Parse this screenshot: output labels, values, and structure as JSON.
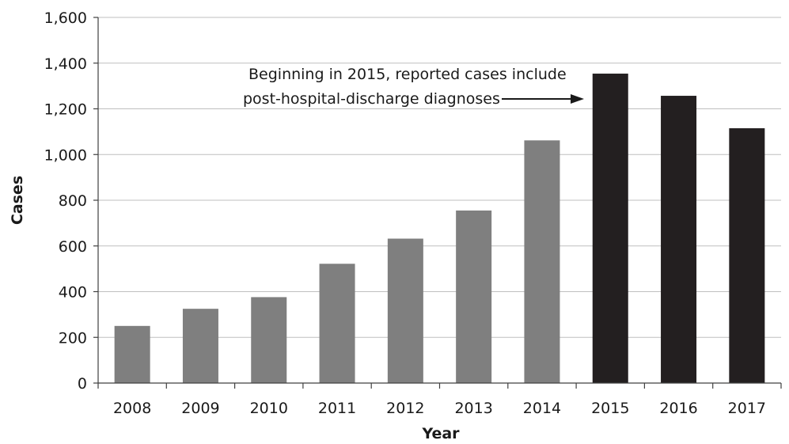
{
  "chart_data": {
    "type": "bar",
    "categories": [
      "2008",
      "2009",
      "2010",
      "2011",
      "2012",
      "2013",
      "2014",
      "2015",
      "2016",
      "2017"
    ],
    "values": [
      250,
      325,
      376,
      522,
      632,
      755,
      1062,
      1354,
      1257,
      1115
    ],
    "bar_colors": [
      "#7f7f7f",
      "#7f7f7f",
      "#7f7f7f",
      "#7f7f7f",
      "#7f7f7f",
      "#7f7f7f",
      "#7f7f7f",
      "#231f20",
      "#231f20",
      "#231f20"
    ],
    "title": "",
    "xlabel": "Year",
    "ylabel": "Cases",
    "ylim": [
      0,
      1600
    ],
    "yticks": [
      0,
      200,
      400,
      600,
      800,
      1000,
      1200,
      1400,
      1600
    ],
    "ytick_labels": [
      "0",
      "200",
      "400",
      "600",
      "800",
      "1,000",
      "1,200",
      "1,400",
      "1,600"
    ],
    "grid": true,
    "legend": "none",
    "annotation": {
      "lines": [
        "Beginning in 2015, reported cases include",
        "post-hospital-discharge diagnoses"
      ],
      "points_to": "2015"
    }
  }
}
